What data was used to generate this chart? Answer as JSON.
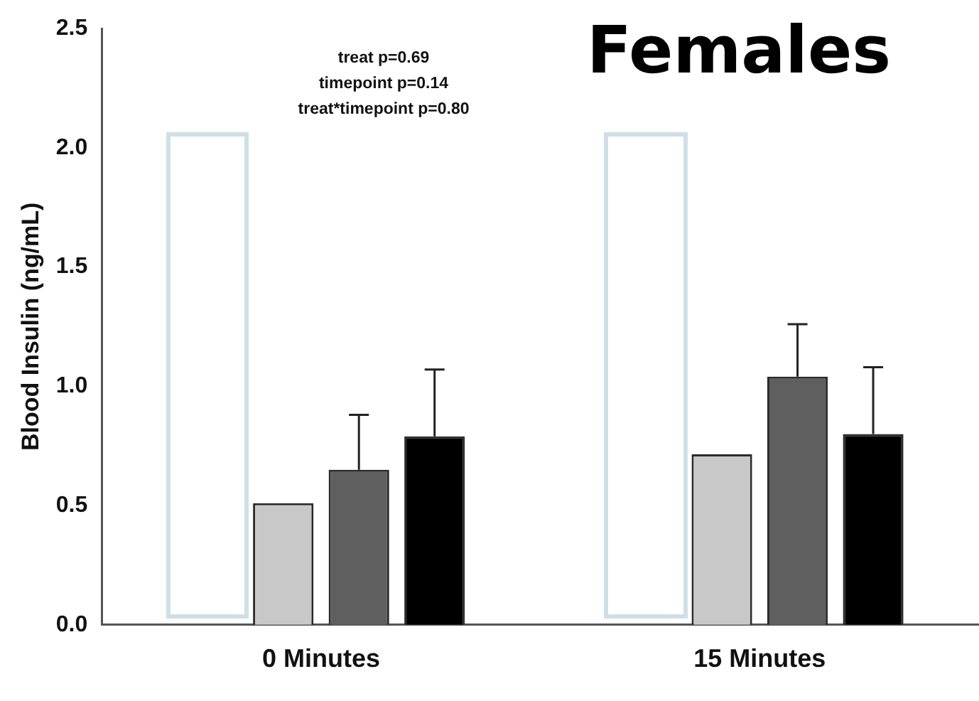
{
  "chart_data": {
    "type": "bar",
    "title": "Females",
    "ylabel": "Blood Insulin (ng/mL)",
    "categories": [
      "0 Minutes",
      "15 Minutes"
    ],
    "series": [
      {
        "color": "#ffffff",
        "values": [
          null,
          null
        ]
      },
      {
        "color": "#c8c8c8",
        "values": [
          0.51,
          0.715
        ]
      },
      {
        "color": "#5f5f5f",
        "values": [
          0.65,
          1.04
        ],
        "errors": [
          0.23,
          0.22
        ]
      },
      {
        "color": "#000000",
        "values": [
          0.79,
          0.8
        ],
        "errors": [
          0.28,
          0.28
        ]
      }
    ],
    "ylim": [
      0,
      2.5
    ],
    "yticks": [
      {
        "value": 0,
        "label": "0.0"
      },
      {
        "value": 0.5,
        "label": "0.5"
      },
      {
        "value": 1,
        "label": "1.0"
      },
      {
        "value": 1.5,
        "label": "1.5"
      },
      {
        "value": 2,
        "label": "2.0"
      },
      {
        "value": 2.5,
        "label": "2.5"
      }
    ],
    "grid": false,
    "legend": false,
    "annotations": [
      "treat p=0.69",
      "timepoint p=0.14",
      "treat*timepoint p=0.80"
    ]
  }
}
